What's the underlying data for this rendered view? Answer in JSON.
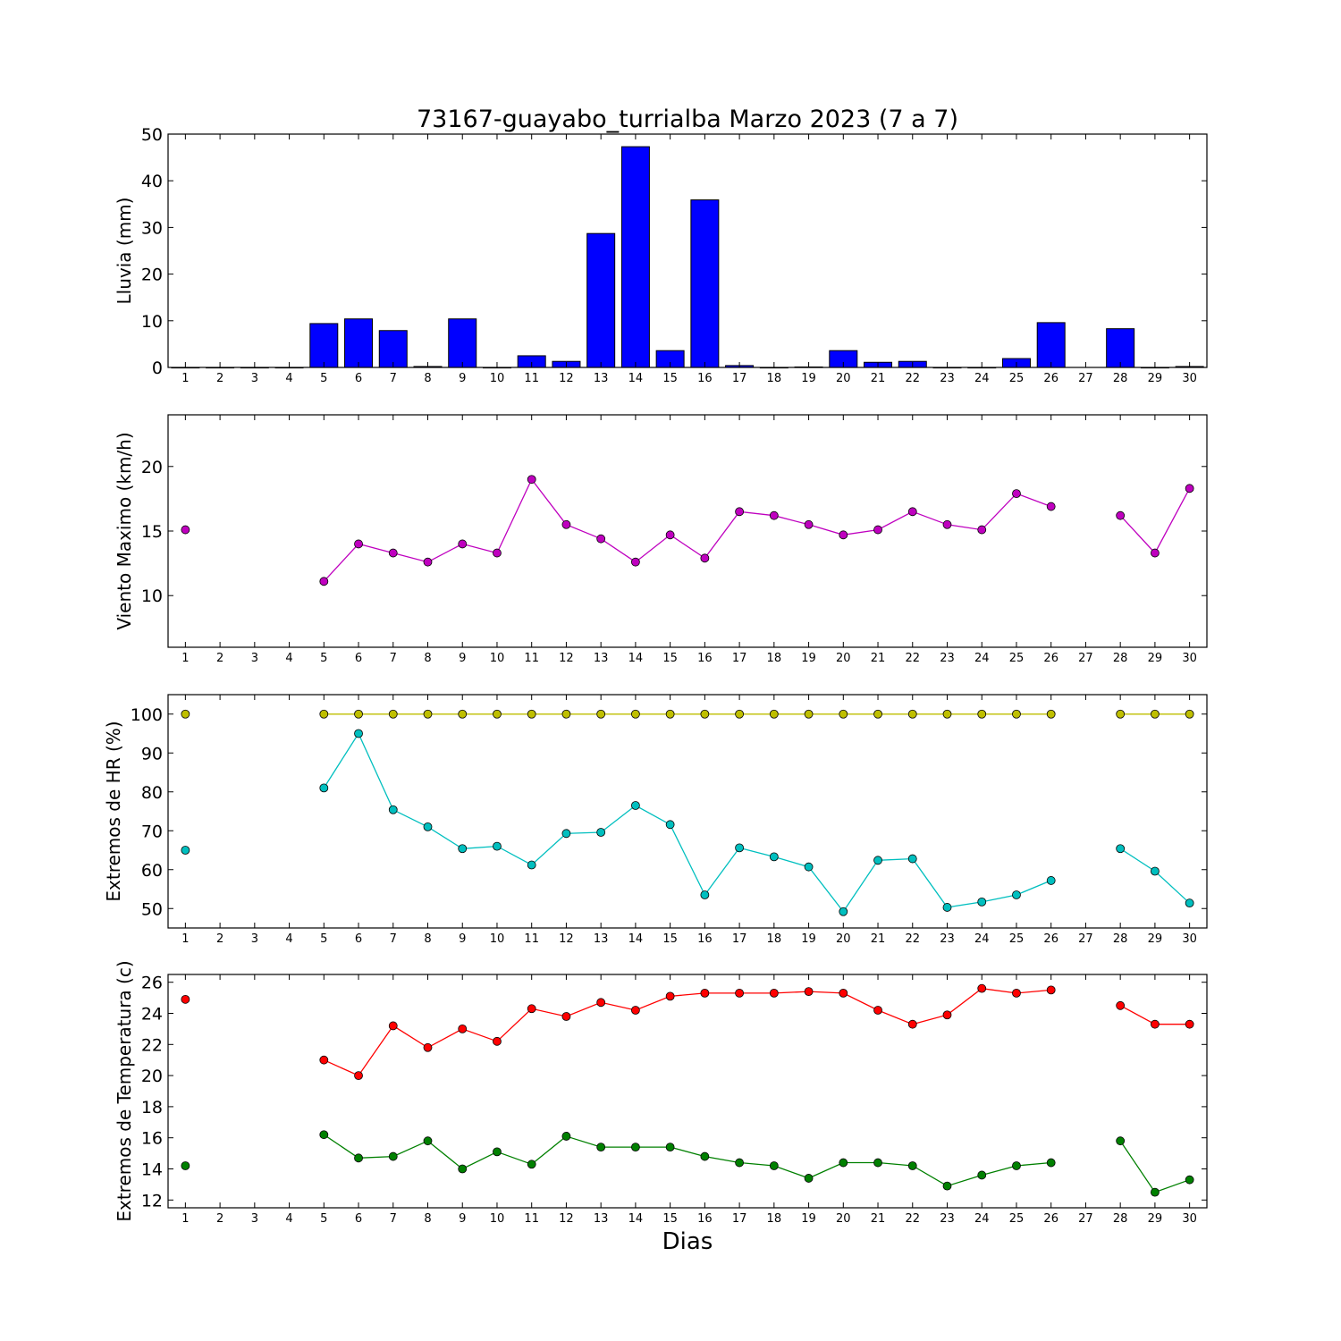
{
  "figure": {
    "title": "73167-guayabo_turrialba Marzo 2023  (7 a 7)",
    "xlabel": "Dias"
  },
  "chart_data": [
    {
      "type": "bar",
      "ylabel": "Lluvia (mm)",
      "ylim": [
        0,
        50
      ],
      "yticks": [
        0,
        10,
        20,
        30,
        40,
        50
      ],
      "x": [
        1,
        2,
        3,
        4,
        5,
        6,
        7,
        8,
        9,
        10,
        11,
        12,
        13,
        14,
        15,
        16,
        17,
        18,
        19,
        20,
        21,
        22,
        23,
        24,
        25,
        26,
        27,
        28,
        29,
        30
      ],
      "xticks": [
        1,
        2,
        3,
        4,
        5,
        6,
        7,
        8,
        9,
        10,
        11,
        12,
        13,
        14,
        15,
        16,
        17,
        18,
        19,
        20,
        21,
        22,
        23,
        24,
        25,
        26,
        27,
        28,
        29,
        30
      ],
      "values": [
        0,
        0,
        0,
        0,
        9.4,
        10.4,
        7.9,
        0.2,
        10.4,
        0,
        2.5,
        1.3,
        28.7,
        47.3,
        3.6,
        35.9,
        0.4,
        0,
        0.1,
        3.6,
        1.1,
        1.3,
        0,
        0,
        1.9,
        9.6,
        null,
        8.3,
        0,
        0.2
      ],
      "color": "#0000ff"
    },
    {
      "type": "line",
      "ylabel": "Viento Maximo (km/h)",
      "ylim": [
        6,
        24
      ],
      "yticks": [
        10,
        15,
        20
      ],
      "x": [
        1,
        2,
        3,
        4,
        5,
        6,
        7,
        8,
        9,
        10,
        11,
        12,
        13,
        14,
        15,
        16,
        17,
        18,
        19,
        20,
        21,
        22,
        23,
        24,
        25,
        26,
        27,
        28,
        29,
        30
      ],
      "xticks": [
        1,
        2,
        3,
        4,
        5,
        6,
        7,
        8,
        9,
        10,
        11,
        12,
        13,
        14,
        15,
        16,
        17,
        18,
        19,
        20,
        21,
        22,
        23,
        24,
        25,
        26,
        27,
        28,
        29,
        30
      ],
      "series": [
        {
          "color": "#bf00bf",
          "values": [
            15.1,
            null,
            null,
            null,
            11.1,
            14.0,
            13.3,
            12.6,
            14.0,
            13.3,
            19.0,
            15.5,
            14.4,
            12.6,
            14.7,
            12.9,
            16.5,
            16.2,
            15.5,
            14.7,
            15.1,
            16.5,
            15.5,
            15.1,
            17.9,
            16.9,
            null,
            16.2,
            13.3,
            18.3
          ]
        }
      ]
    },
    {
      "type": "line",
      "ylabel": "Extremos de HR (%)",
      "ylim": [
        45,
        105
      ],
      "yticks": [
        50,
        60,
        70,
        80,
        90,
        100
      ],
      "x": [
        1,
        2,
        3,
        4,
        5,
        6,
        7,
        8,
        9,
        10,
        11,
        12,
        13,
        14,
        15,
        16,
        17,
        18,
        19,
        20,
        21,
        22,
        23,
        24,
        25,
        26,
        27,
        28,
        29,
        30
      ],
      "xticks": [
        1,
        2,
        3,
        4,
        5,
        6,
        7,
        8,
        9,
        10,
        11,
        12,
        13,
        14,
        15,
        16,
        17,
        18,
        19,
        20,
        21,
        22,
        23,
        24,
        25,
        26,
        27,
        28,
        29,
        30
      ],
      "series": [
        {
          "color": "#bfbf00",
          "values": [
            100,
            null,
            null,
            null,
            100,
            100,
            100,
            100,
            100,
            100,
            100,
            100,
            100,
            100,
            100,
            100,
            100,
            100,
            100,
            100,
            100,
            100,
            100,
            100,
            100,
            100,
            null,
            100,
            100,
            100
          ]
        },
        {
          "color": "#00bfbf",
          "values": [
            65,
            null,
            null,
            null,
            81,
            95,
            75.4,
            71,
            65.4,
            66,
            61.2,
            69.3,
            69.6,
            76.5,
            71.6,
            53.5,
            65.6,
            63.3,
            60.7,
            49.2,
            62.4,
            62.8,
            50.3,
            51.7,
            53.5,
            57.2,
            null,
            65.4,
            59.6,
            51.4
          ]
        }
      ]
    },
    {
      "type": "line",
      "ylabel": "Extremos de Temperatura (c)",
      "ylim": [
        11.5,
        26.5
      ],
      "yticks": [
        12,
        14,
        16,
        18,
        20,
        22,
        24,
        26
      ],
      "x": [
        1,
        2,
        3,
        4,
        5,
        6,
        7,
        8,
        9,
        10,
        11,
        12,
        13,
        14,
        15,
        16,
        17,
        18,
        19,
        20,
        21,
        22,
        23,
        24,
        25,
        26,
        27,
        28,
        29,
        30
      ],
      "xticks": [
        1,
        2,
        3,
        4,
        5,
        6,
        7,
        8,
        9,
        10,
        11,
        12,
        13,
        14,
        15,
        16,
        17,
        18,
        19,
        20,
        21,
        22,
        23,
        24,
        25,
        26,
        27,
        28,
        29,
        30
      ],
      "series": [
        {
          "color": "#ff0000",
          "values": [
            24.9,
            null,
            null,
            null,
            21.0,
            20.0,
            23.2,
            21.8,
            23.0,
            22.2,
            24.3,
            23.8,
            24.7,
            24.2,
            25.1,
            25.3,
            25.3,
            25.3,
            25.4,
            25.3,
            24.2,
            23.3,
            23.9,
            25.6,
            25.3,
            25.5,
            null,
            24.5,
            23.3,
            23.3
          ]
        },
        {
          "color": "#008000",
          "values": [
            14.2,
            null,
            null,
            null,
            16.2,
            14.7,
            14.8,
            15.8,
            14.0,
            15.1,
            14.3,
            16.1,
            15.4,
            15.4,
            15.4,
            14.8,
            14.4,
            14.2,
            13.4,
            14.4,
            14.4,
            14.2,
            12.9,
            13.6,
            14.2,
            14.4,
            null,
            15.8,
            12.5,
            13.3
          ]
        }
      ]
    }
  ]
}
